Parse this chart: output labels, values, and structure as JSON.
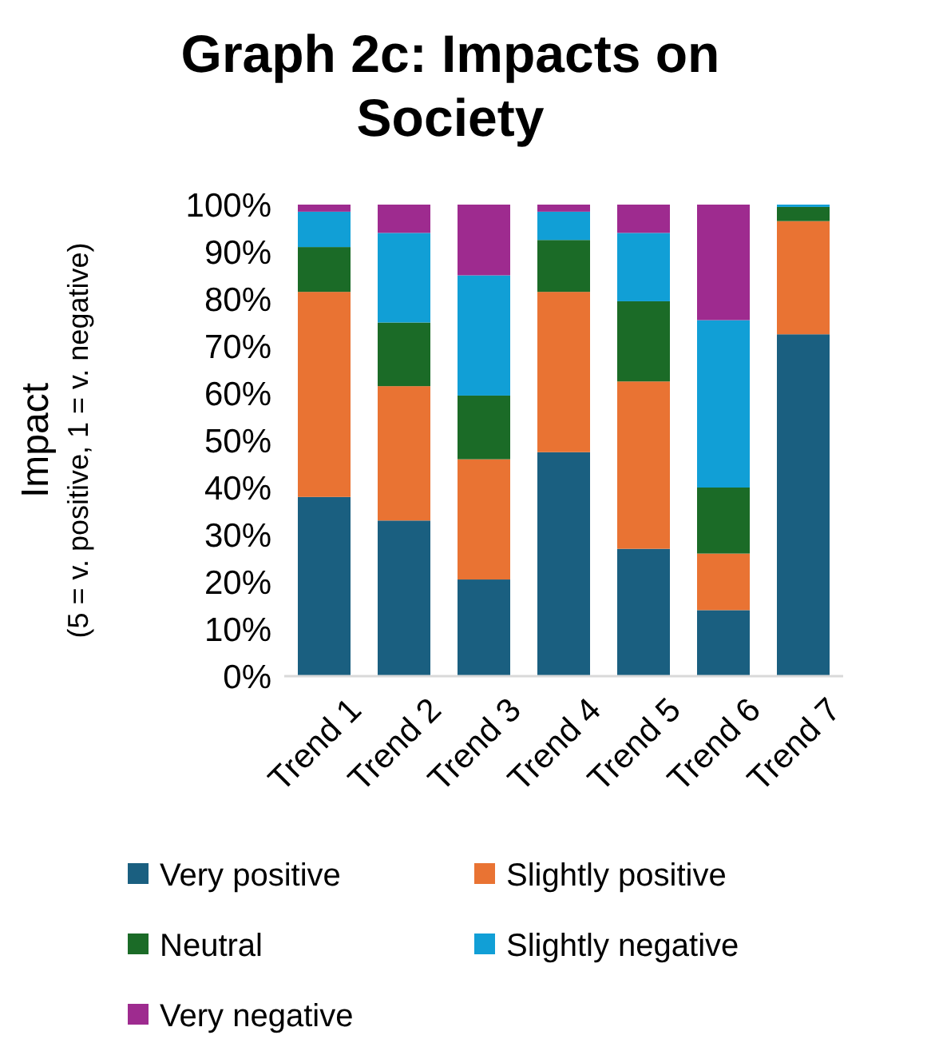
{
  "chart_data": {
    "type": "bar",
    "title": "Graph 2c: Impacts on Society",
    "ylabel": "Impact\n(5 = v. positive, 1 = v. negative)",
    "categories": [
      "Trend 1",
      "Trend 2",
      "Trend 3",
      "Trend 4",
      "Trend 5",
      "Trend 6",
      "Trend 7"
    ],
    "stacked": true,
    "series": [
      {
        "name": "Very positive",
        "color": "#1a5f80",
        "values": [
          38,
          33,
          20.5,
          47.5,
          27,
          14,
          72.5
        ]
      },
      {
        "name": "Slightly positive",
        "color": "#e97333",
        "values": [
          43.5,
          28.5,
          25.5,
          34,
          35.5,
          12,
          24
        ]
      },
      {
        "name": "Neutral",
        "color": "#1b6b27",
        "values": [
          9.5,
          13.5,
          13.5,
          11,
          17,
          14,
          3
        ]
      },
      {
        "name": "Slightly negative",
        "color": "#119fd6",
        "values": [
          7.5,
          19,
          25.5,
          6,
          14.5,
          35.5,
          0.5
        ]
      },
      {
        "name": "Very negative",
        "color": "#9e2b8f",
        "values": [
          1.5,
          6,
          15,
          1.5,
          6,
          24.5,
          0
        ]
      }
    ],
    "ylim": [
      0,
      100
    ],
    "yticks": [
      {
        "value": 0,
        "label": "0%"
      },
      {
        "value": 10,
        "label": "10%"
      },
      {
        "value": 20,
        "label": "20%"
      },
      {
        "value": 30,
        "label": "30%"
      },
      {
        "value": 40,
        "label": "40%"
      },
      {
        "value": 50,
        "label": "50%"
      },
      {
        "value": 60,
        "label": "60%"
      },
      {
        "value": 70,
        "label": "70%"
      },
      {
        "value": 80,
        "label": "80%"
      },
      {
        "value": 90,
        "label": "90%"
      },
      {
        "value": 100,
        "label": "100%"
      }
    ],
    "grid": false,
    "legend": "bottom"
  }
}
